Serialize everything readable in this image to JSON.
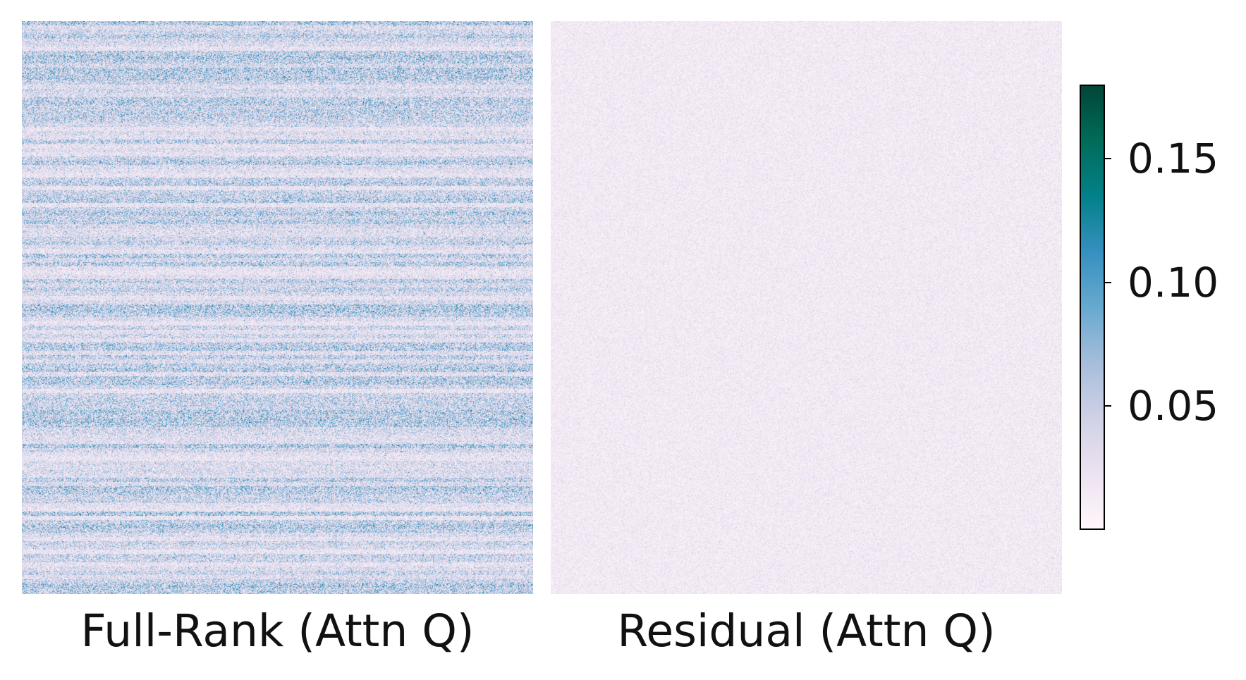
{
  "chart_data": [
    {
      "type": "heatmap",
      "title": "Full-Rank (Attn Q)",
      "value_distribution": "dense, mostly 0.03-0.08 with frequent values up to about 0.12; visible horizontal banding across rows",
      "typical_range": [
        0.0,
        0.13
      ]
    },
    {
      "type": "heatmap",
      "title": "Residual (Attn Q)",
      "value_distribution": "nearly uniform, mostly 0.0-0.03 with sparse values up to about 0.06",
      "typical_range": [
        0.0,
        0.06
      ]
    }
  ],
  "colorbar": {
    "colormap": "PuBuGn",
    "range": [
      0.0,
      0.18
    ],
    "tick_values": [
      0.05,
      0.1,
      0.15
    ],
    "tick_labels": [
      "0.05",
      "0.10",
      "0.15"
    ],
    "colors": [
      "#fff7fb",
      "#ece2f0",
      "#d0d1e6",
      "#a6bddb",
      "#67a9cf",
      "#3690c0",
      "#02818a",
      "#016c59",
      "#014636"
    ]
  }
}
